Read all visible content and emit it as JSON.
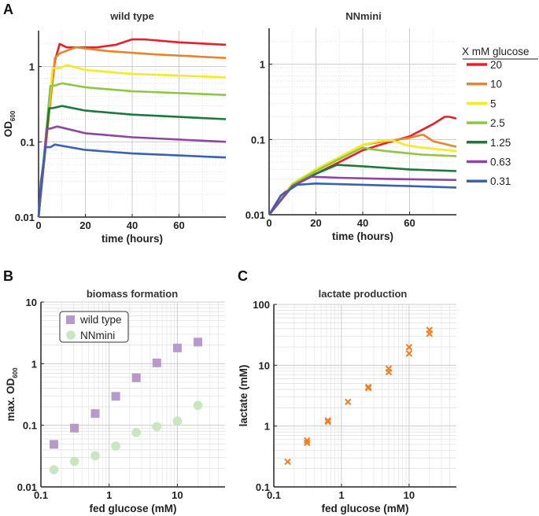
{
  "panel_letters": {
    "a": "A",
    "b": "B",
    "c": "C"
  },
  "chart_data": [
    {
      "id": "wt",
      "type": "line",
      "title": "wild type",
      "xlabel": "time (hours)",
      "ylabel": "OD",
      "ylabel_sub": "600",
      "xlim": [
        0,
        80
      ],
      "ylim": [
        0.01,
        3
      ],
      "yscale": "log",
      "xticks": [
        0,
        20,
        40,
        60
      ],
      "xtick_labels": [
        "0",
        "20",
        "40",
        "60"
      ],
      "yticks": [
        0.01,
        0.1,
        1
      ],
      "ytick_labels": [
        "0.01",
        "0.1",
        "1"
      ],
      "grid": true,
      "series": [
        {
          "name": "20",
          "color": "#ee1c25",
          "points": [
            [
              0,
              0.01
            ],
            [
              3,
              0.1
            ],
            [
              7,
              1.2
            ],
            [
              9,
              2.0
            ],
            [
              12,
              1.8
            ],
            [
              25,
              1.8
            ],
            [
              33,
              1.95
            ],
            [
              40,
              2.3
            ],
            [
              45,
              2.3
            ],
            [
              60,
              2.1
            ],
            [
              80,
              1.95
            ]
          ]
        },
        {
          "name": "10",
          "color": "#e8842c",
          "points": [
            [
              0,
              0.01
            ],
            [
              7,
              1.3
            ],
            [
              9,
              1.5
            ],
            [
              16,
              1.8
            ],
            [
              30,
              1.6
            ],
            [
              50,
              1.45
            ],
            [
              80,
              1.3
            ]
          ]
        },
        {
          "name": "5",
          "color": "#f4ec20",
          "points": [
            [
              0,
              0.01
            ],
            [
              6,
              0.95
            ],
            [
              9,
              0.95
            ],
            [
              12,
              1.05
            ],
            [
              20,
              0.9
            ],
            [
              40,
              0.8
            ],
            [
              80,
              0.72
            ]
          ]
        },
        {
          "name": "2.5",
          "color": "#8dc63f",
          "points": [
            [
              0,
              0.01
            ],
            [
              5,
              0.55
            ],
            [
              7,
              0.56
            ],
            [
              10,
              0.6
            ],
            [
              20,
              0.53
            ],
            [
              40,
              0.47
            ],
            [
              80,
              0.42
            ]
          ]
        },
        {
          "name": "1.25",
          "color": "#1b7a3a",
          "points": [
            [
              0,
              0.01
            ],
            [
              4.5,
              0.28
            ],
            [
              6,
              0.28
            ],
            [
              10,
              0.3
            ],
            [
              20,
              0.26
            ],
            [
              40,
              0.23
            ],
            [
              80,
              0.2
            ]
          ]
        },
        {
          "name": "0.63",
          "color": "#8e44a0",
          "points": [
            [
              0,
              0.01
            ],
            [
              3.5,
              0.15
            ],
            [
              5,
              0.15
            ],
            [
              8,
              0.16
            ],
            [
              20,
              0.13
            ],
            [
              40,
              0.115
            ],
            [
              80,
              0.1
            ]
          ]
        },
        {
          "name": "0.31",
          "color": "#3a62b0",
          "points": [
            [
              0,
              0.01
            ],
            [
              1,
              0.03
            ],
            [
              3,
              0.085
            ],
            [
              5,
              0.085
            ],
            [
              7,
              0.092
            ],
            [
              20,
              0.078
            ],
            [
              40,
              0.07
            ],
            [
              80,
              0.062
            ]
          ]
        }
      ]
    },
    {
      "id": "nn",
      "type": "line",
      "title": "NNmini",
      "xlabel": "time (hours)",
      "xlim": [
        0,
        80
      ],
      "ylim": [
        0.01,
        3
      ],
      "yscale": "log",
      "xticks": [
        0,
        20,
        40,
        60
      ],
      "xtick_labels": [
        "0",
        "20",
        "40",
        "60"
      ],
      "yticks": [
        0.01,
        0.1,
        1
      ],
      "ytick_labels": [
        "0.01",
        "0.1",
        "1"
      ],
      "grid": true,
      "legend": {
        "title": "X mM glucose",
        "placement": "right"
      },
      "series": [
        {
          "name": "20",
          "color": "#ee1c25",
          "points": [
            [
              0,
              0.01
            ],
            [
              5,
              0.018
            ],
            [
              10,
              0.024
            ],
            [
              20,
              0.035
            ],
            [
              30,
              0.05
            ],
            [
              40,
              0.072
            ],
            [
              50,
              0.09
            ],
            [
              60,
              0.11
            ],
            [
              70,
              0.16
            ],
            [
              75,
              0.2
            ],
            [
              77,
              0.2
            ],
            [
              80,
              0.19
            ]
          ]
        },
        {
          "name": "10",
          "color": "#e8842c",
          "points": [
            [
              0,
              0.01
            ],
            [
              10,
              0.026
            ],
            [
              20,
              0.04
            ],
            [
              30,
              0.058
            ],
            [
              40,
              0.085
            ],
            [
              50,
              0.095
            ],
            [
              60,
              0.105
            ],
            [
              65,
              0.115
            ],
            [
              66,
              0.115
            ],
            [
              70,
              0.095
            ],
            [
              80,
              0.08
            ]
          ]
        },
        {
          "name": "5",
          "color": "#f4ec20",
          "points": [
            [
              0,
              0.01
            ],
            [
              10,
              0.026
            ],
            [
              20,
              0.04
            ],
            [
              30,
              0.058
            ],
            [
              40,
              0.085
            ],
            [
              47,
              0.095
            ],
            [
              53,
              0.097
            ],
            [
              58,
              0.085
            ],
            [
              65,
              0.078
            ],
            [
              80,
              0.07
            ]
          ]
        },
        {
          "name": "2.5",
          "color": "#8dc63f",
          "points": [
            [
              0,
              0.01
            ],
            [
              10,
              0.025
            ],
            [
              20,
              0.038
            ],
            [
              30,
              0.055
            ],
            [
              40,
              0.078
            ],
            [
              43,
              0.075
            ],
            [
              50,
              0.07
            ],
            [
              65,
              0.063
            ],
            [
              80,
              0.06
            ]
          ]
        },
        {
          "name": "1.25",
          "color": "#1b7a3a",
          "points": [
            [
              0,
              0.01
            ],
            [
              10,
              0.024
            ],
            [
              20,
              0.035
            ],
            [
              29,
              0.046
            ],
            [
              40,
              0.044
            ],
            [
              60,
              0.04
            ],
            [
              80,
              0.038
            ]
          ]
        },
        {
          "name": "0.63",
          "color": "#8e44a0",
          "points": [
            [
              0,
              0.01
            ],
            [
              10,
              0.024
            ],
            [
              18,
              0.032
            ],
            [
              30,
              0.031
            ],
            [
              50,
              0.03
            ],
            [
              80,
              0.029
            ]
          ]
        },
        {
          "name": "0.31",
          "color": "#3a62b0",
          "points": [
            [
              0,
              0.01
            ],
            [
              5,
              0.018
            ],
            [
              12,
              0.025
            ],
            [
              20,
              0.026
            ],
            [
              40,
              0.025
            ],
            [
              60,
              0.024
            ],
            [
              80,
              0.023
            ]
          ]
        }
      ]
    },
    {
      "id": "bio",
      "type": "scatter",
      "title": "biomass formation",
      "xlabel": "fed glucose (mM)",
      "ylabel": "max. OD",
      "ylabel_sub": "600",
      "xscale": "log",
      "yscale": "log",
      "xlim": [
        0.1,
        50
      ],
      "ylim": [
        0.01,
        10
      ],
      "xticks": [
        0.1,
        1,
        10
      ],
      "xtick_labels": [
        "0.1",
        "1",
        "10"
      ],
      "yticks": [
        0.01,
        0.1,
        1,
        10
      ],
      "ytick_labels": [
        "0.01",
        "0.1",
        "1",
        "10"
      ],
      "grid": true,
      "legend": {
        "placement": "top-left"
      },
      "series": [
        {
          "name": "wild type",
          "marker": "square",
          "color": "#b79ac9",
          "x": [
            0.155,
            0.31,
            0.625,
            1.25,
            2.5,
            5,
            10,
            20
          ],
          "y": [
            0.049,
            0.09,
            0.155,
            0.295,
            0.59,
            1.03,
            1.8,
            2.24
          ]
        },
        {
          "name": "NNmini",
          "marker": "circle",
          "color": "#c8e6c0",
          "x": [
            0.155,
            0.31,
            0.625,
            1.25,
            2.5,
            5,
            10,
            20
          ],
          "y": [
            0.019,
            0.026,
            0.032,
            0.046,
            0.076,
            0.095,
            0.117,
            0.21
          ]
        }
      ]
    },
    {
      "id": "lac",
      "type": "scatter",
      "title": "lactate production",
      "xlabel": "fed glucose (mM)",
      "ylabel": "lactate (mM)",
      "xscale": "log",
      "yscale": "log",
      "xlim": [
        0.1,
        50
      ],
      "ylim": [
        0.1,
        100
      ],
      "xticks": [
        0.1,
        1,
        10
      ],
      "xtick_labels": [
        "0.1",
        "1",
        "10"
      ],
      "yticks": [
        0.1,
        1,
        10,
        100
      ],
      "ytick_labels": [
        "0.1",
        "1",
        "10",
        "100"
      ],
      "grid": true,
      "series": [
        {
          "marker": "x",
          "color": "#f57c20",
          "x": [
            0.16,
            0.31,
            0.31,
            0.63,
            0.63,
            1.25,
            2.5,
            2.5,
            5,
            5,
            10,
            10,
            20,
            20
          ],
          "y": [
            0.26,
            0.58,
            0.53,
            1.24,
            1.18,
            2.5,
            4.4,
            4.2,
            8.8,
            7.7,
            19.8,
            15.6,
            38,
            33
          ]
        }
      ]
    }
  ]
}
